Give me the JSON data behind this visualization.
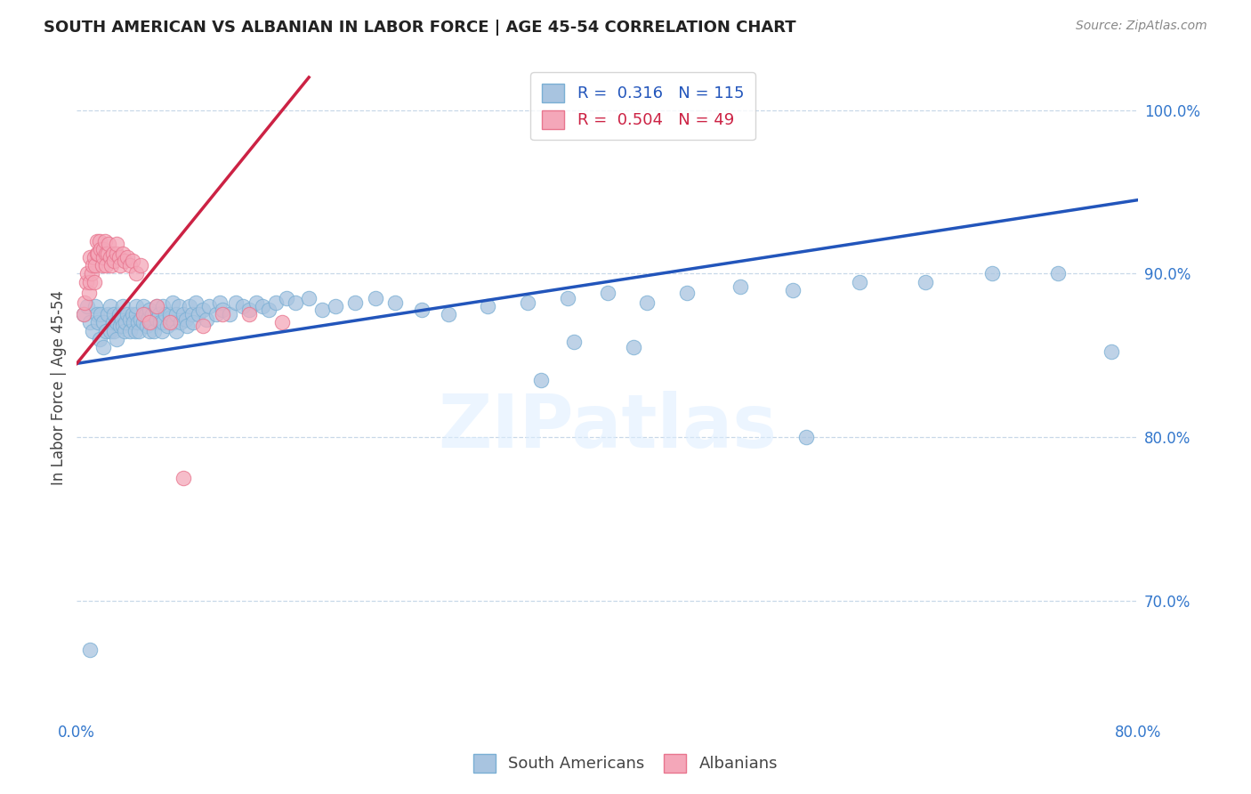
{
  "title": "SOUTH AMERICAN VS ALBANIAN IN LABOR FORCE | AGE 45-54 CORRELATION CHART",
  "source": "Source: ZipAtlas.com",
  "ylabel": "In Labor Force | Age 45-54",
  "xlim": [
    0.0,
    0.8
  ],
  "ylim": [
    0.63,
    1.03
  ],
  "xticks": [
    0.0,
    0.1,
    0.2,
    0.3,
    0.4,
    0.5,
    0.6,
    0.7,
    0.8
  ],
  "xticklabels": [
    "0.0%",
    "",
    "",
    "",
    "",
    "",
    "",
    "",
    "80.0%"
  ],
  "yticks_right": [
    0.7,
    0.8,
    0.9,
    1.0
  ],
  "yticklabels_right": [
    "70.0%",
    "80.0%",
    "90.0%",
    "100.0%"
  ],
  "blue_R": 0.316,
  "blue_N": 115,
  "pink_R": 0.504,
  "pink_N": 49,
  "blue_color": "#a8c4e0",
  "pink_color": "#f4a7b9",
  "blue_edge_color": "#7aafd4",
  "pink_edge_color": "#e8758e",
  "blue_line_color": "#2255bb",
  "pink_line_color": "#cc2244",
  "watermark": "ZIPatlas",
  "blue_line_x": [
    0.0,
    0.8
  ],
  "blue_line_y": [
    0.845,
    0.945
  ],
  "pink_line_x": [
    0.0,
    0.175
  ],
  "pink_line_y": [
    0.845,
    1.02
  ],
  "blue_scatter_x": [
    0.005,
    0.008,
    0.01,
    0.012,
    0.014,
    0.015,
    0.016,
    0.017,
    0.018,
    0.02,
    0.02,
    0.022,
    0.023,
    0.025,
    0.025,
    0.027,
    0.028,
    0.028,
    0.03,
    0.03,
    0.032,
    0.033,
    0.034,
    0.035,
    0.035,
    0.036,
    0.037,
    0.038,
    0.04,
    0.04,
    0.042,
    0.043,
    0.044,
    0.045,
    0.045,
    0.046,
    0.047,
    0.048,
    0.05,
    0.05,
    0.052,
    0.053,
    0.054,
    0.055,
    0.055,
    0.056,
    0.057,
    0.058,
    0.06,
    0.06,
    0.062,
    0.063,
    0.064,
    0.065,
    0.065,
    0.067,
    0.068,
    0.07,
    0.07,
    0.072,
    0.073,
    0.075,
    0.075,
    0.077,
    0.078,
    0.08,
    0.082,
    0.083,
    0.085,
    0.087,
    0.088,
    0.09,
    0.092,
    0.095,
    0.098,
    0.1,
    0.105,
    0.108,
    0.11,
    0.115,
    0.12,
    0.125,
    0.13,
    0.135,
    0.14,
    0.145,
    0.15,
    0.158,
    0.165,
    0.175,
    0.185,
    0.195,
    0.21,
    0.225,
    0.24,
    0.26,
    0.28,
    0.31,
    0.34,
    0.37,
    0.4,
    0.43,
    0.46,
    0.5,
    0.54,
    0.59,
    0.64,
    0.69,
    0.74,
    0.78,
    0.01,
    0.35,
    0.55,
    0.375,
    0.42
  ],
  "blue_scatter_y": [
    0.875,
    0.88,
    0.87,
    0.865,
    0.88,
    0.875,
    0.87,
    0.86,
    0.875,
    0.855,
    0.87,
    0.865,
    0.875,
    0.88,
    0.865,
    0.87,
    0.865,
    0.875,
    0.87,
    0.86,
    0.875,
    0.868,
    0.872,
    0.868,
    0.88,
    0.865,
    0.87,
    0.875,
    0.872,
    0.865,
    0.875,
    0.87,
    0.865,
    0.875,
    0.88,
    0.87,
    0.865,
    0.872,
    0.87,
    0.88,
    0.875,
    0.868,
    0.873,
    0.878,
    0.865,
    0.87,
    0.875,
    0.865,
    0.872,
    0.88,
    0.875,
    0.87,
    0.865,
    0.88,
    0.87,
    0.875,
    0.868,
    0.873,
    0.875,
    0.882,
    0.87,
    0.875,
    0.865,
    0.88,
    0.87,
    0.875,
    0.872,
    0.868,
    0.88,
    0.875,
    0.87,
    0.882,
    0.875,
    0.878,
    0.872,
    0.88,
    0.875,
    0.882,
    0.878,
    0.875,
    0.882,
    0.88,
    0.878,
    0.882,
    0.88,
    0.878,
    0.882,
    0.885,
    0.882,
    0.885,
    0.878,
    0.88,
    0.882,
    0.885,
    0.882,
    0.878,
    0.875,
    0.88,
    0.882,
    0.885,
    0.888,
    0.882,
    0.888,
    0.892,
    0.89,
    0.895,
    0.895,
    0.9,
    0.9,
    0.852,
    0.67,
    0.835,
    0.8,
    0.858,
    0.855
  ],
  "pink_scatter_x": [
    0.005,
    0.006,
    0.007,
    0.008,
    0.009,
    0.01,
    0.01,
    0.011,
    0.012,
    0.013,
    0.013,
    0.014,
    0.015,
    0.015,
    0.016,
    0.017,
    0.018,
    0.019,
    0.02,
    0.02,
    0.021,
    0.022,
    0.022,
    0.023,
    0.024,
    0.025,
    0.026,
    0.027,
    0.028,
    0.03,
    0.03,
    0.032,
    0.033,
    0.035,
    0.036,
    0.038,
    0.04,
    0.042,
    0.045,
    0.048,
    0.05,
    0.055,
    0.06,
    0.07,
    0.08,
    0.095,
    0.11,
    0.13,
    0.155
  ],
  "pink_scatter_y": [
    0.875,
    0.882,
    0.895,
    0.9,
    0.888,
    0.895,
    0.91,
    0.9,
    0.905,
    0.895,
    0.91,
    0.905,
    0.912,
    0.92,
    0.912,
    0.92,
    0.915,
    0.905,
    0.91,
    0.915,
    0.92,
    0.912,
    0.905,
    0.912,
    0.918,
    0.91,
    0.905,
    0.912,
    0.908,
    0.912,
    0.918,
    0.91,
    0.905,
    0.912,
    0.908,
    0.91,
    0.905,
    0.908,
    0.9,
    0.905,
    0.875,
    0.87,
    0.88,
    0.87,
    0.775,
    0.868,
    0.875,
    0.875,
    0.87
  ]
}
